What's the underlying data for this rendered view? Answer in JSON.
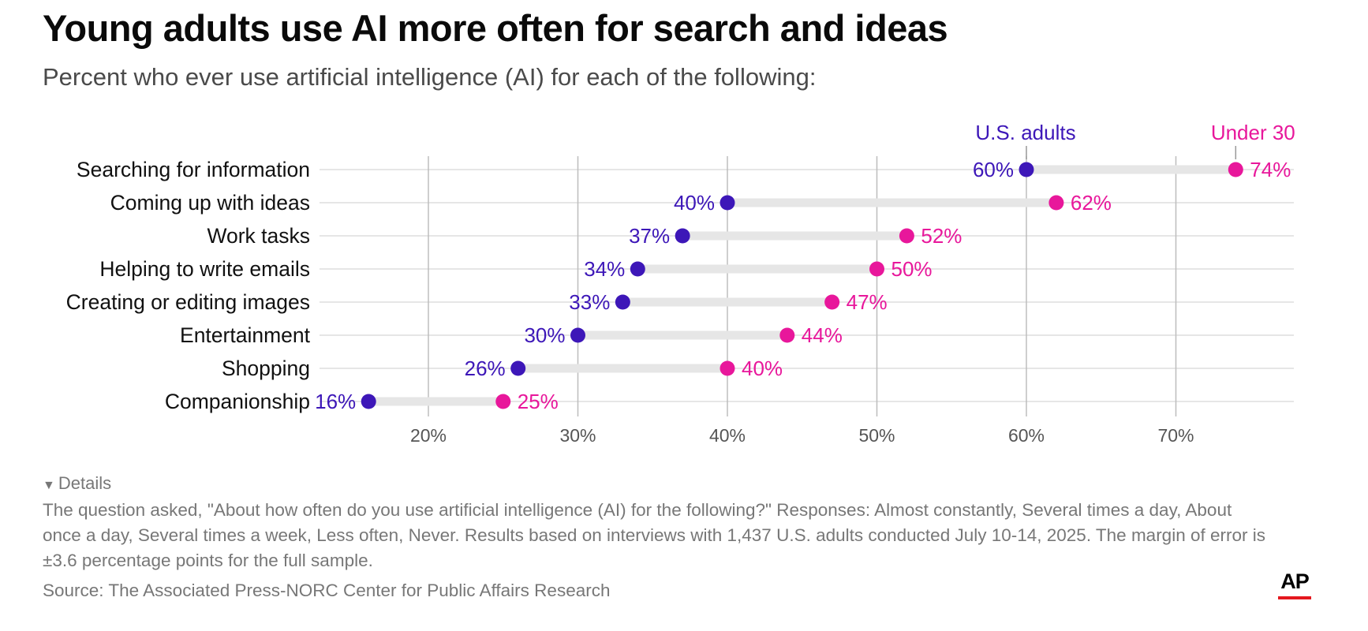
{
  "title": "Young adults use AI more often for search and ideas",
  "subtitle": "Percent who ever use artificial intelligence (AI) for each of the following:",
  "details_label": "Details",
  "note": "The question asked, \"About how often do you use artificial intelligence (AI) for the following?\" Responses: Almost constantly, Several times a day, About once a day, Several times a week, Less often, Never. Results based on interviews with 1,437 U.S. adults conducted July 10-14, 2025. The margin of error is ±3.6 percentage points for the full sample.",
  "source": "Source: The Associated Press-NORC Center for Public Affairs Research",
  "logo_text": "AP",
  "colors": {
    "us_adults": "#3d17b8",
    "under_30": "#e8179b",
    "gridline": "#bdbdbd",
    "range_bar": "#e6e6e6",
    "logo_bar": "#e4181f"
  },
  "chart_data": {
    "type": "dot-range",
    "categories": [
      "Searching for information",
      "Coming up with ideas",
      "Work tasks",
      "Helping to write emails",
      "Creating or editing images",
      "Entertainment",
      "Shopping",
      "Companionship"
    ],
    "series": [
      {
        "name": "U.S. adults",
        "values": [
          60,
          40,
          37,
          34,
          33,
          30,
          26,
          16
        ],
        "labels": [
          "60%",
          "40%",
          "37%",
          "34%",
          "33%",
          "30%",
          "26%",
          "16%"
        ]
      },
      {
        "name": "Under 30",
        "values": [
          74,
          62,
          52,
          50,
          47,
          44,
          40,
          25
        ],
        "labels": [
          "74%",
          "62%",
          "52%",
          "50%",
          "47%",
          "44%",
          "40%",
          "25%"
        ]
      }
    ],
    "xticks": [
      20,
      30,
      40,
      50,
      60,
      70
    ],
    "xtick_labels": [
      "20%",
      "30%",
      "40%",
      "50%",
      "60%",
      "70%"
    ],
    "xlim": [
      12.5,
      77
    ],
    "grid": true,
    "legend": "direct labels above top row"
  }
}
